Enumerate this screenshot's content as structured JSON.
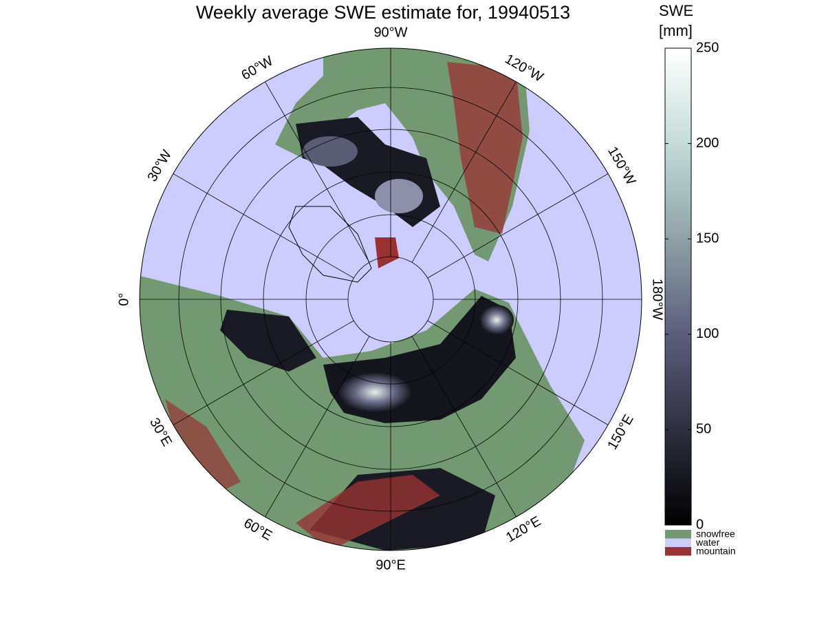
{
  "title": "Weekly average SWE estimate for, 19940513",
  "meridian_labels": [
    "90°W",
    "120°W",
    "150°W",
    "180°W",
    "150°E",
    "120°E",
    "90°E",
    "60°E",
    "30°E",
    "0°",
    "30°W",
    "60°W"
  ],
  "colorbar": {
    "label": [
      "SWE",
      "[mm]"
    ],
    "lim": [
      0,
      250
    ],
    "ticks": [
      0,
      50,
      100,
      150,
      200,
      250
    ],
    "colormap": [
      "#000000",
      "#2f2f3f",
      "#5c5e7a",
      "#8ea2a6",
      "#c4dcd8",
      "#ffffff"
    ]
  },
  "legend": [
    {
      "name": "snowfree",
      "color": "#739973"
    },
    {
      "name": "water",
      "color": "#ccccff"
    },
    {
      "name": "mountain",
      "color": "#993333"
    }
  ]
}
